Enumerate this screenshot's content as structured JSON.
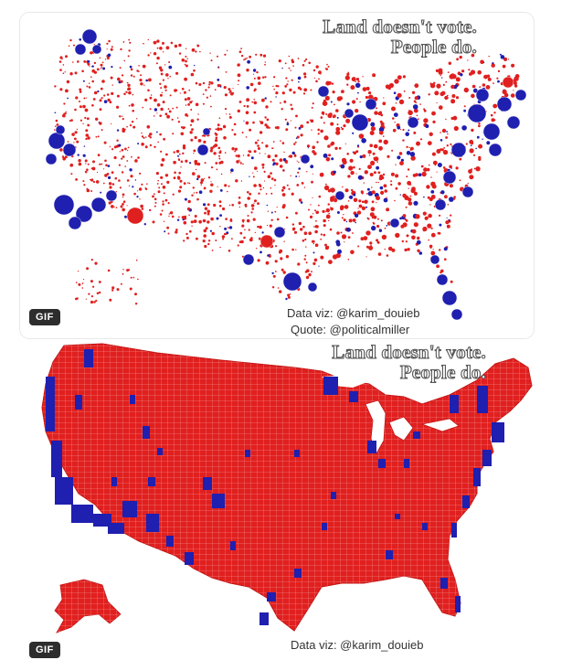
{
  "top_panel": {
    "headline_line1": "Land doesn't vote.",
    "headline_line2": "People do.",
    "badge": "GIF",
    "credit_viz": "Data viz: @karim_douieb",
    "credit_quote": "Quote: @politicalmiller"
  },
  "bottom_panel": {
    "headline_line1": "Land doesn't vote.",
    "headline_line2": "People do.",
    "badge": "GIF",
    "credit_viz": "Data viz: @karim_douieb"
  },
  "colors": {
    "red": "#e0201f",
    "blue": "#1f1fb0",
    "background": "#ffffff"
  }
}
